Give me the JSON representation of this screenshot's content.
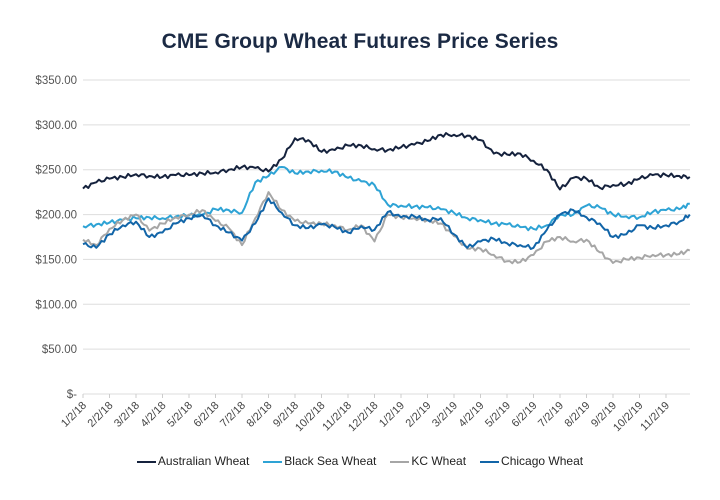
{
  "chart_data": {
    "type": "line",
    "title": "CME Group Wheat Futures Price Series",
    "xlabel": "",
    "ylabel": "",
    "ylim": [
      0,
      350
    ],
    "yticks": [
      0,
      50,
      100,
      150,
      200,
      250,
      300,
      350
    ],
    "ytick_labels": [
      "$-",
      "$50.00",
      "$100.00",
      "$150.00",
      "$200.00",
      "$250.00",
      "$300.00",
      "$350.00"
    ],
    "grid": true,
    "legend_position": "bottom",
    "x_tick_labels": [
      "1/2/18",
      "2/2/18",
      "3/2/18",
      "4/2/18",
      "5/2/18",
      "6/2/18",
      "7/2/18",
      "8/2/18",
      "9/2/18",
      "10/2/18",
      "11/2/18",
      "12/2/18",
      "1/2/19",
      "2/2/19",
      "3/2/19",
      "4/2/19",
      "5/2/19",
      "6/2/19",
      "7/2/19",
      "8/2/19",
      "9/2/19",
      "10/2/19",
      "11/2/19"
    ],
    "x_months": [
      0,
      0.5,
      1,
      1.5,
      2,
      2.5,
      3,
      3.5,
      4,
      4.5,
      5,
      5.5,
      6,
      6.5,
      7,
      7.5,
      8,
      8.5,
      9,
      9.5,
      10,
      10.5,
      11,
      11.5,
      12,
      12.5,
      13,
      13.5,
      14,
      14.5,
      15,
      15.5,
      16,
      16.5,
      17,
      17.5,
      18,
      18.5,
      19,
      19.5,
      20,
      20.5,
      21,
      21.5,
      22,
      22.5,
      22.9
    ],
    "series": [
      {
        "name": "Australian Wheat",
        "color": "#15223d",
        "values": [
          229,
          236,
          240,
          242,
          245,
          243,
          242,
          244,
          244,
          246,
          247,
          250,
          253,
          252,
          248,
          262,
          285,
          283,
          270,
          272,
          277,
          277,
          273,
          272,
          275,
          278,
          282,
          289,
          289,
          288,
          283,
          268,
          267,
          268,
          260,
          250,
          228,
          241,
          240,
          230,
          233,
          234,
          240,
          244,
          244,
          243,
          242
        ]
      },
      {
        "name": "Black Sea Wheat",
        "color": "#2ea3d5",
        "values": [
          187,
          189,
          191,
          194,
          196,
          197,
          196,
          198,
          199,
          199,
          206,
          205,
          202,
          236,
          243,
          253,
          246,
          248,
          249,
          248,
          241,
          237,
          233,
          211,
          210,
          209,
          208,
          206,
          202,
          196,
          194,
          190,
          189,
          186,
          184,
          188,
          200,
          200,
          210,
          208,
          200,
          198,
          197,
          203,
          205,
          206,
          212
        ]
      },
      {
        "name": "KC Wheat",
        "color": "#a6a6a6",
        "values": [
          172,
          166,
          184,
          194,
          200,
          182,
          190,
          197,
          200,
          205,
          193,
          185,
          166,
          196,
          225,
          205,
          193,
          190,
          190,
          188,
          183,
          188,
          170,
          200,
          197,
          196,
          194,
          190,
          176,
          162,
          162,
          155,
          148,
          147,
          155,
          170,
          175,
          170,
          172,
          158,
          146,
          150,
          152,
          155,
          155,
          156,
          160
        ]
      },
      {
        "name": "Chicago Wheat",
        "color": "#1265a8",
        "values": [
          167,
          163,
          178,
          188,
          192,
          175,
          180,
          190,
          196,
          200,
          188,
          180,
          171,
          190,
          218,
          202,
          188,
          185,
          189,
          186,
          180,
          187,
          183,
          203,
          197,
          198,
          194,
          196,
          178,
          163,
          170,
          173,
          168,
          166,
          163,
          183,
          200,
          205,
          197,
          190,
          175,
          178,
          188,
          185,
          188,
          192,
          200
        ]
      }
    ]
  }
}
